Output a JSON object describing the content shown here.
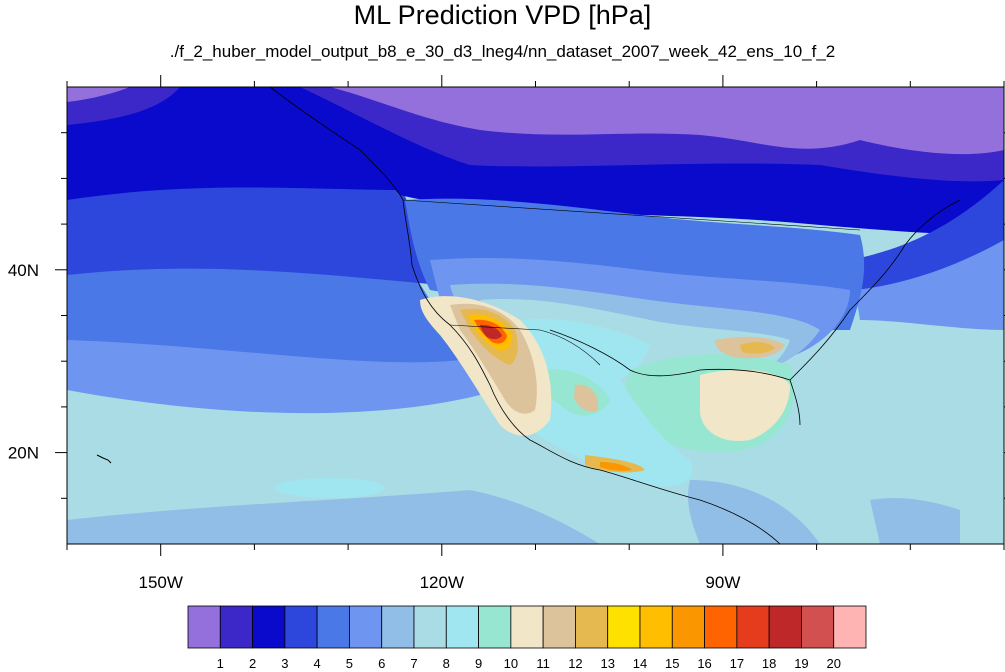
{
  "title": "ML Prediction VPD [hPa]",
  "subtitle": "./f_2_huber_model_output_b8_e_30_d3_lneg4/nn_dataset_2007_week_42_ens_10_f_2",
  "chart_data": {
    "type": "heatmap",
    "title": "ML Prediction VPD [hPa]",
    "subtitle": "./f_2_huber_model_output_b8_e_30_d3_lneg4/nn_dataset_2007_week_42_ens_10_f_2",
    "lon_range": [
      -160,
      -60
    ],
    "lat_range": [
      10,
      60
    ],
    "x_ticks": [
      {
        "value": -150,
        "label": "150W"
      },
      {
        "value": -120,
        "label": "120W"
      },
      {
        "value": -90,
        "label": "90W"
      }
    ],
    "x_minor_ticks": [
      -160,
      -140,
      -130,
      -110,
      -100,
      -80,
      -70,
      -60
    ],
    "y_ticks": [
      {
        "value": 20,
        "label": "20N"
      },
      {
        "value": 40,
        "label": "40N"
      }
    ],
    "y_minor_ticks": [
      15,
      25,
      30,
      35,
      45,
      50,
      55
    ],
    "colorbar": {
      "labels": [
        "1",
        "2",
        "3",
        "4",
        "5",
        "6",
        "7",
        "8",
        "9",
        "10",
        "11",
        "12",
        "13",
        "14",
        "15",
        "16",
        "17",
        "18",
        "19",
        "20"
      ],
      "colors": [
        "#9370DB",
        "#3C28C8",
        "#0A0ACD",
        "#2D46DC",
        "#4A78E6",
        "#6E96F0",
        "#91BEE6",
        "#AADCE6",
        "#A0E6F0",
        "#96E6D2",
        "#F2E6C8",
        "#DCC39B",
        "#E6B950",
        "#FFE100",
        "#FFBE00",
        "#FA9600",
        "#FF6400",
        "#E63C1E",
        "#BE2828",
        "#D25050",
        "#FFB4B4"
      ]
    },
    "field_description_levels": {
      "north_pacific_and_canada": "1-3",
      "mid_pacific_band": "4-6",
      "tropical_pacific": "7-8",
      "western_us_interior": "5-9",
      "southwest_desert_max": "17-18",
      "gulf_of_mexico": "9-11",
      "caribbean": "7-8"
    }
  }
}
